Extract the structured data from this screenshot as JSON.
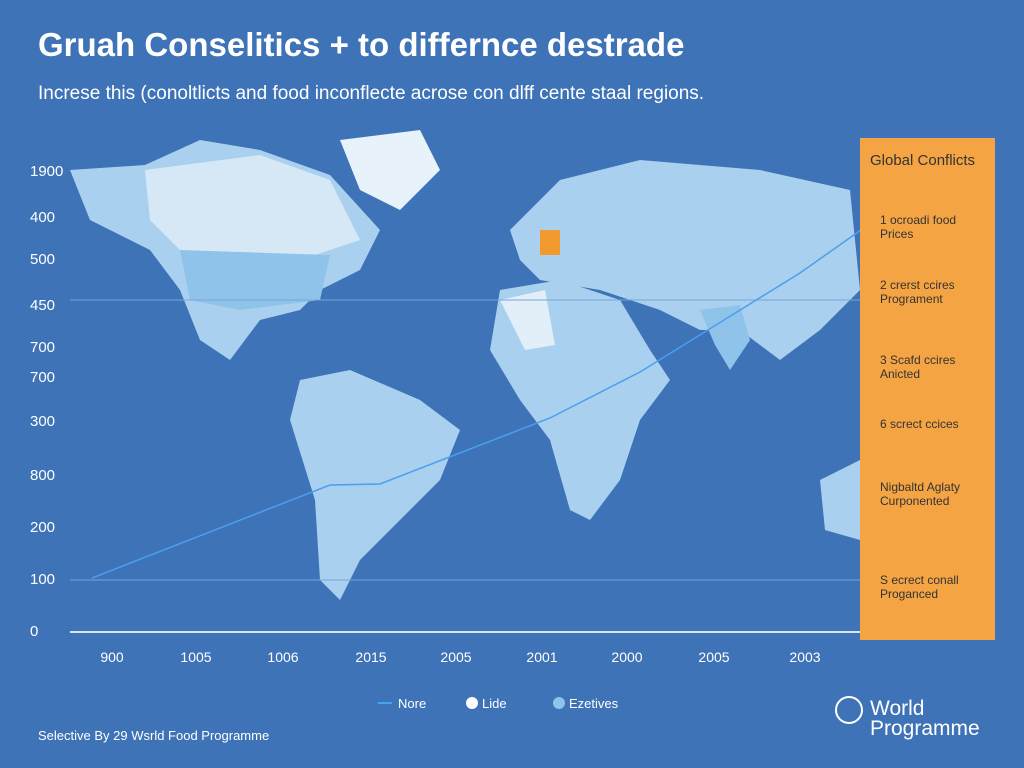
{
  "header": {
    "title": "Gruah Conselitics + to differnce destrade",
    "subtitle": "Increse this (conoltlicts and food inconflecte acrose con dlff cente staal regions."
  },
  "left_axis_labels": [
    "1900",
    "400",
    "500",
    "450",
    "700",
    "700",
    "300",
    "800",
    "200",
    "100",
    "0"
  ],
  "bottom_axis_labels": [
    "900",
    "1005",
    "1006",
    "2015",
    "2005",
    "2001",
    "2000",
    "2005",
    "2003"
  ],
  "panel": {
    "title": "Global Conflicts",
    "items": [
      [
        "1 ocroadi food",
        "Prices"
      ],
      [
        "2 crerst ccires",
        "Programent"
      ],
      [
        "3 Scafd ccires",
        "Anicted"
      ],
      [
        "6 screct ccices"
      ],
      [
        "Nigbaltd Aglaty",
        "Curponented"
      ],
      [
        "S ecrect conall",
        "Proganced"
      ]
    ]
  },
  "legend": [
    "Nore",
    "Lide",
    "Ezetives"
  ],
  "footer": "Selective By 29 Wsrld Food Programme",
  "logo": [
    "World",
    "Programme"
  ]
}
